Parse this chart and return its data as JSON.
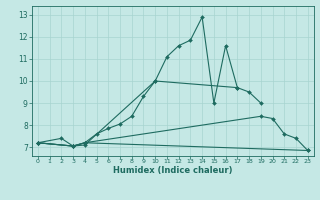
{
  "xlabel": "Humidex (Indice chaleur)",
  "bg_color": "#c5e8e5",
  "grid_color": "#a8d4d0",
  "line_color": "#1e6b60",
  "xlim": [
    -0.5,
    23.5
  ],
  "ylim": [
    6.6,
    13.4
  ],
  "xticks": [
    0,
    1,
    2,
    3,
    4,
    5,
    6,
    7,
    8,
    9,
    10,
    11,
    12,
    13,
    14,
    15,
    16,
    17,
    18,
    19,
    20,
    21,
    22,
    23
  ],
  "yticks": [
    7,
    8,
    9,
    10,
    11,
    12,
    13
  ],
  "line1_x": [
    0,
    2,
    3,
    4,
    10,
    11,
    12,
    13,
    14,
    15,
    16,
    17
  ],
  "line1_y": [
    7.2,
    7.4,
    7.05,
    7.1,
    10.0,
    11.1,
    11.6,
    11.85,
    12.9,
    9.0,
    11.6,
    9.7
  ],
  "line2_x": [
    0,
    3,
    4,
    5,
    6,
    7,
    8,
    9,
    10,
    17,
    18,
    19
  ],
  "line2_y": [
    7.2,
    7.05,
    7.2,
    7.6,
    7.85,
    8.05,
    8.4,
    9.3,
    10.0,
    9.7,
    9.5,
    9.0
  ],
  "line3_x": [
    0,
    3,
    4,
    19,
    20,
    21,
    22,
    23
  ],
  "line3_y": [
    7.2,
    7.05,
    7.2,
    8.4,
    8.3,
    7.6,
    7.4,
    6.85
  ],
  "line4_x": [
    0,
    3,
    4,
    23
  ],
  "line4_y": [
    7.2,
    7.05,
    7.2,
    6.85
  ]
}
